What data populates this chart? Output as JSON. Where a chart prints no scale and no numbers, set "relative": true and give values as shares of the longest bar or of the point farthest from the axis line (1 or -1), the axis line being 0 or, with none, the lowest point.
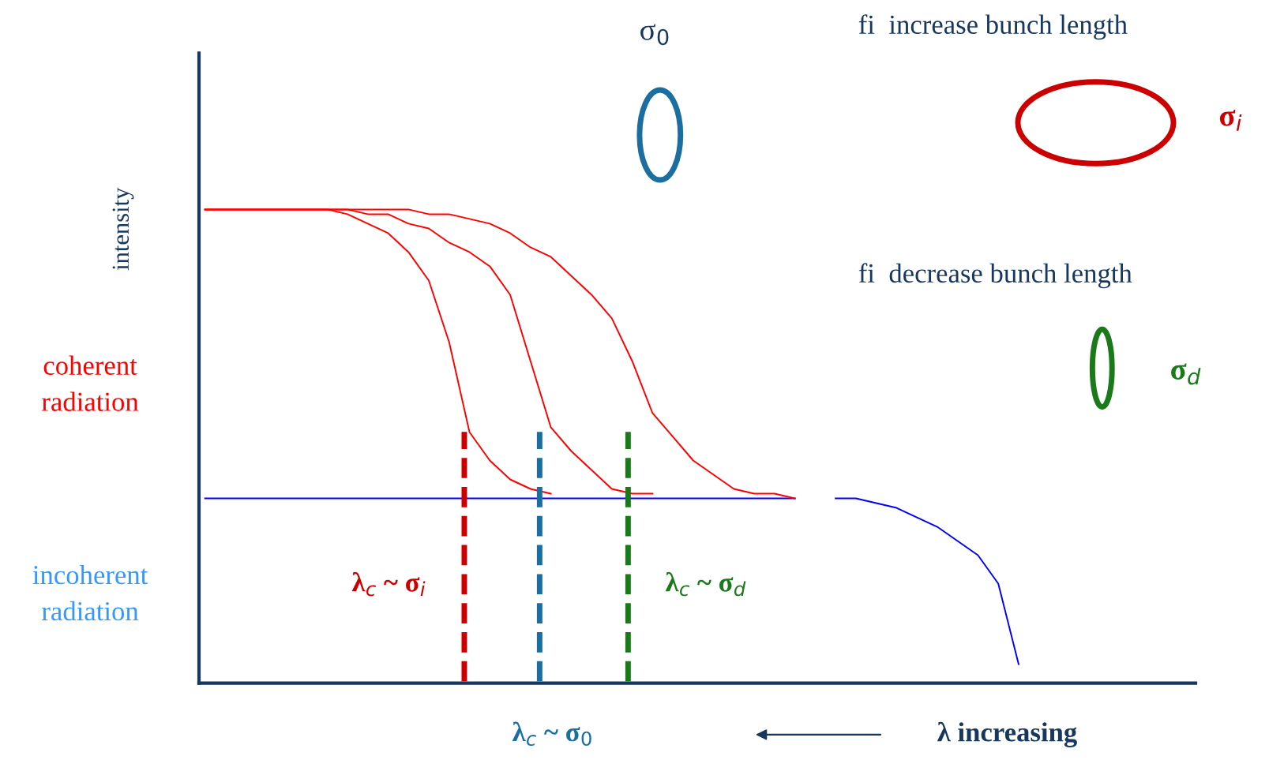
{
  "chart_data": {
    "type": "line",
    "relative": true,
    "ylabel": "intensity",
    "legend": false,
    "marker": "none",
    "line_style": "solid",
    "categories": [
      null,
      null,
      null,
      null,
      null,
      null,
      null,
      null,
      null,
      null,
      null,
      null,
      null,
      null,
      null,
      null,
      null,
      null,
      null,
      null,
      null,
      null,
      null,
      null,
      null,
      null,
      null,
      null,
      null,
      null,
      null,
      null,
      null,
      null,
      null,
      null,
      null,
      null,
      null,
      null,
      null,
      null,
      null,
      null,
      null,
      null,
      null,
      null,
      null
    ],
    "series": [
      {
        "color": "#0000ff",
        "values": [
          0.39,
          0.39,
          0.39,
          0.39,
          0.39,
          0.39,
          0.39,
          0.39,
          0.39,
          0.39,
          0.39,
          0.39,
          0.39,
          0.39,
          0.39,
          0.39,
          0.39,
          0.39,
          0.39,
          0.39,
          0.39,
          0.39,
          0.39,
          0.39,
          0.39,
          0.39,
          0.39,
          0.39,
          0.39,
          0.39,
          null,
          0.39,
          0.39,
          0.38,
          0.37,
          0.35,
          0.33,
          0.3,
          0.27,
          0.21,
          0.04,
          null,
          null,
          null,
          null,
          null,
          null,
          null,
          null
        ]
      },
      {
        "color": "#ff0000",
        "values": [
          1,
          1,
          1,
          1,
          1,
          1,
          1,
          0.99,
          0.97,
          0.95,
          0.91,
          0.85,
          0.72,
          0.53,
          0.47,
          0.43,
          0.41,
          0.4,
          null,
          null,
          null,
          null,
          null,
          null,
          null,
          null,
          null,
          null,
          null,
          null,
          null,
          null,
          null,
          null,
          null,
          null,
          null,
          null,
          null,
          null,
          null,
          null,
          null,
          null,
          null,
          null,
          null,
          null,
          null
        ]
      },
      {
        "color": "#ff0000",
        "values": [
          1,
          1,
          1,
          1,
          1,
          1,
          1,
          1,
          0.99,
          0.99,
          0.97,
          0.96,
          0.93,
          0.91,
          0.88,
          0.82,
          0.68,
          0.54,
          0.49,
          0.45,
          0.41,
          0.4,
          0.4,
          null,
          null,
          null,
          null,
          null,
          null,
          null,
          null,
          null,
          null,
          null,
          null,
          null,
          null,
          null,
          null,
          null,
          null,
          null,
          null,
          null,
          null,
          null,
          null,
          null,
          null
        ]
      },
      {
        "color": "#ff0000",
        "values": [
          1,
          1,
          1,
          1,
          1,
          1,
          1,
          1,
          1,
          1,
          1,
          0.99,
          0.99,
          0.98,
          0.97,
          0.95,
          0.92,
          0.9,
          0.86,
          0.82,
          0.77,
          0.68,
          0.57,
          0.52,
          0.47,
          0.44,
          0.41,
          0.4,
          0.4,
          0.39,
          null,
          null,
          null,
          null,
          null,
          null,
          null,
          null,
          null,
          null,
          null,
          null,
          null,
          null,
          null,
          null,
          null,
          null,
          null
        ]
      }
    ],
    "annotations": [
      "σ$_{0}$",
      "fi  increase bunch length",
      "σ$_{i}$",
      "fi  decrease bunch length",
      "σ$_{d}$",
      "coherent\nradiation",
      "incoherent\nradiation",
      "λ increasing",
      "λ$_{c}$ ~ σ$_{i}$",
      "λ$_{c}$ ~ σ$_{0}$",
      "λ$_{c}$ ~ σ$_{d}$"
    ]
  }
}
